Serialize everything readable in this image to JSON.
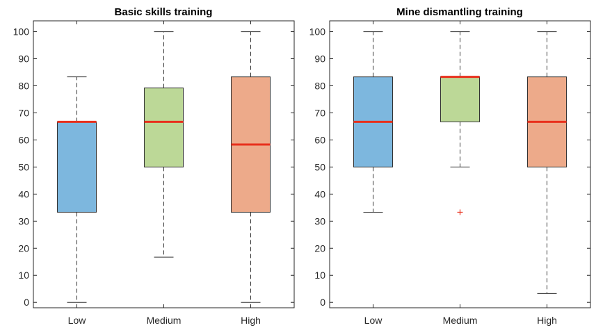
{
  "chart_data": [
    {
      "type": "box",
      "title": "Basic skills training",
      "xlabel": "",
      "ylabel": "",
      "ylim": [
        -2,
        104
      ],
      "yticks": [
        0,
        10,
        20,
        30,
        40,
        50,
        60,
        70,
        80,
        90,
        100
      ],
      "categories": [
        "Low",
        "Medium",
        "High"
      ],
      "series": [
        {
          "min": 0,
          "q1": 33.3,
          "median": 66.7,
          "q3": 66.7,
          "max": 83.3,
          "outliers": []
        },
        {
          "min": 16.7,
          "q1": 50,
          "median": 66.7,
          "q3": 79.2,
          "max": 100,
          "outliers": []
        },
        {
          "min": 0,
          "q1": 33.3,
          "median": 58.3,
          "q3": 83.3,
          "max": 100,
          "outliers": []
        }
      ],
      "box_colors": [
        "#7db7de",
        "#bcd897",
        "#edaa8a"
      ],
      "median_color": "#e8301c",
      "grid": false
    },
    {
      "type": "box",
      "title": "Mine dismantling training",
      "xlabel": "",
      "ylabel": "",
      "ylim": [
        -2,
        104
      ],
      "yticks": [
        0,
        10,
        20,
        30,
        40,
        50,
        60,
        70,
        80,
        90,
        100
      ],
      "categories": [
        "Low",
        "Medium",
        "High"
      ],
      "series": [
        {
          "min": 33.3,
          "q1": 50,
          "median": 66.7,
          "q3": 83.3,
          "max": 100,
          "outliers": []
        },
        {
          "min": 50,
          "q1": 66.7,
          "median": 83.3,
          "q3": 83.3,
          "max": 100,
          "outliers": [
            33.3
          ]
        },
        {
          "min": 3.3,
          "q1": 50,
          "median": 66.7,
          "q3": 83.3,
          "max": 100,
          "outliers": []
        }
      ],
      "box_colors": [
        "#7db7de",
        "#bcd897",
        "#edaa8a"
      ],
      "median_color": "#e8301c",
      "grid": false
    }
  ]
}
